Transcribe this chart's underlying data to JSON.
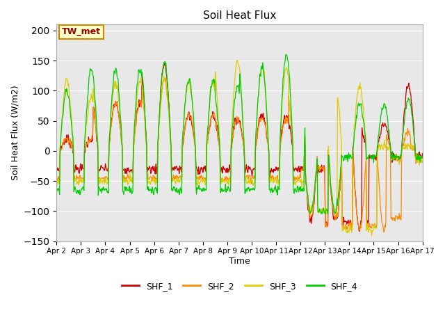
{
  "title": "Soil Heat Flux",
  "ylabel": "Soil Heat Flux (W/m2)",
  "xlabel": "Time",
  "ylim": [
    -150,
    210
  ],
  "yticks": [
    -150,
    -100,
    -50,
    0,
    50,
    100,
    150,
    200
  ],
  "annotation": "TW_met",
  "colors": {
    "SHF_1": "#cc0000",
    "SHF_2": "#ff8800",
    "SHF_3": "#ddcc00",
    "SHF_4": "#00cc00"
  },
  "bg_color": "#e8e8e8",
  "x_tick_labels": [
    "Apr 2",
    "Apr 3",
    "Apr 4",
    "Apr 5",
    "Apr 6",
    "Apr 7",
    "Apr 8",
    "Apr 9",
    "Apr 10",
    "Apr 11",
    "Apr 12",
    "Apr 13",
    "Apr 14",
    "Apr 15",
    "Apr 16",
    "Apr 17"
  ]
}
